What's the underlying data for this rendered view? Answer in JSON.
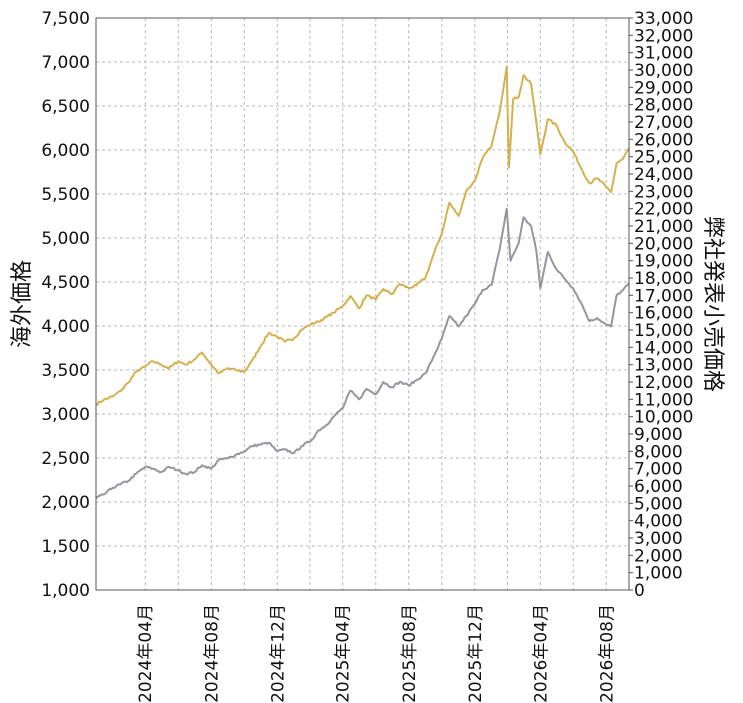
{
  "chart_data": {
    "type": "line",
    "ylabel_left": "海外価格",
    "ylabel_right": "弊社発表小売価格",
    "yleft_range": [
      1000,
      7500
    ],
    "yleft_ticks": [
      "1,000",
      "1,500",
      "2,000",
      "2,500",
      "3,000",
      "3,500",
      "4,000",
      "4,500",
      "5,000",
      "5,500",
      "6,000",
      "6,500",
      "7,000",
      "7,500"
    ],
    "yright_range": [
      0,
      33000
    ],
    "yright_ticks": [
      "0",
      "1,000",
      "2,000",
      "3,000",
      "4,000",
      "5,000",
      "6,000",
      "7,000",
      "8,000",
      "9,000",
      "10,000",
      "11,000",
      "12,000",
      "13,000",
      "14,000",
      "15,000",
      "16,000",
      "17,000",
      "18,000",
      "19,000",
      "20,000",
      "21,000",
      "22,000",
      "23,000",
      "24,000",
      "25,000",
      "26,000",
      "27,000",
      "28,000",
      "29,000",
      "30,000",
      "31,000",
      "32,000",
      "33,000"
    ],
    "x_range": [
      "2024-01-01",
      "2026-09-12"
    ],
    "x_ticks": [
      {
        "date": "2024-04-01",
        "label": "2024年04月"
      },
      {
        "date": "2024-08-01",
        "label": "2024年08月"
      },
      {
        "date": "2024-12-01",
        "label": "2024年12月"
      },
      {
        "date": "2025-04-01",
        "label": "2025年04月"
      },
      {
        "date": "2025-08-01",
        "label": "2025年08月"
      },
      {
        "date": "2025-12-01",
        "label": "2025年12月"
      },
      {
        "date": "2026-04-01",
        "label": "2026年04月"
      },
      {
        "date": "2026-08-01",
        "label": "2026年08月"
      }
    ],
    "grid": true,
    "series": [
      {
        "axis": "left",
        "color": "#d4b14e",
        "points": [
          [
            "2024-01-01",
            3110
          ],
          [
            "2024-01-15",
            3160
          ],
          [
            "2024-02-01",
            3200
          ],
          [
            "2024-02-15",
            3260
          ],
          [
            "2024-03-01",
            3360
          ],
          [
            "2024-03-15",
            3480
          ],
          [
            "2024-04-01",
            3540
          ],
          [
            "2024-04-15",
            3600
          ],
          [
            "2024-05-01",
            3560
          ],
          [
            "2024-05-15",
            3520
          ],
          [
            "2024-06-01",
            3600
          ],
          [
            "2024-06-15",
            3560
          ],
          [
            "2024-07-01",
            3620
          ],
          [
            "2024-07-15",
            3700
          ],
          [
            "2024-08-01",
            3560
          ],
          [
            "2024-08-15",
            3460
          ],
          [
            "2024-09-01",
            3520
          ],
          [
            "2024-09-15",
            3500
          ],
          [
            "2024-10-01",
            3480
          ],
          [
            "2024-10-15",
            3600
          ],
          [
            "2024-11-01",
            3780
          ],
          [
            "2024-11-15",
            3920
          ],
          [
            "2024-12-01",
            3880
          ],
          [
            "2024-12-15",
            3820
          ],
          [
            "2025-01-01",
            3860
          ],
          [
            "2025-01-15",
            3960
          ],
          [
            "2025-02-01",
            4020
          ],
          [
            "2025-02-15",
            4050
          ],
          [
            "2025-03-01",
            4100
          ],
          [
            "2025-03-15",
            4150
          ],
          [
            "2025-04-01",
            4230
          ],
          [
            "2025-04-15",
            4340
          ],
          [
            "2025-05-01",
            4200
          ],
          [
            "2025-05-15",
            4350
          ],
          [
            "2025-06-01",
            4300
          ],
          [
            "2025-06-15",
            4420
          ],
          [
            "2025-07-01",
            4360
          ],
          [
            "2025-07-15",
            4480
          ],
          [
            "2025-08-01",
            4430
          ],
          [
            "2025-08-15",
            4460
          ],
          [
            "2025-09-01",
            4550
          ],
          [
            "2025-09-15",
            4800
          ],
          [
            "2025-10-01",
            5050
          ],
          [
            "2025-10-15",
            5400
          ],
          [
            "2025-11-01",
            5250
          ],
          [
            "2025-11-15",
            5530
          ],
          [
            "2025-12-01",
            5650
          ],
          [
            "2025-12-15",
            5900
          ],
          [
            "2026-01-01",
            6050
          ],
          [
            "2026-01-15",
            6400
          ],
          [
            "2026-01-29",
            6950
          ],
          [
            "2026-02-02",
            5800
          ],
          [
            "2026-02-10",
            6580
          ],
          [
            "2026-02-20",
            6600
          ],
          [
            "2026-03-01",
            6850
          ],
          [
            "2026-03-15",
            6750
          ],
          [
            "2026-03-25",
            6300
          ],
          [
            "2026-04-01",
            5950
          ],
          [
            "2026-04-15",
            6350
          ],
          [
            "2026-05-01",
            6280
          ],
          [
            "2026-05-15",
            6100
          ],
          [
            "2026-06-01",
            5980
          ],
          [
            "2026-06-15",
            5800
          ],
          [
            "2026-07-01",
            5620
          ],
          [
            "2026-07-15",
            5680
          ],
          [
            "2026-08-01",
            5580
          ],
          [
            "2026-08-10",
            5520
          ],
          [
            "2026-08-20",
            5850
          ],
          [
            "2026-09-01",
            5900
          ],
          [
            "2026-09-12",
            6020
          ]
        ]
      },
      {
        "axis": "right",
        "color": "#95959d",
        "points": [
          [
            "2024-01-01",
            5300
          ],
          [
            "2024-01-15",
            5500
          ],
          [
            "2024-02-01",
            5900
          ],
          [
            "2024-02-15",
            6100
          ],
          [
            "2024-03-01",
            6300
          ],
          [
            "2024-03-15",
            6700
          ],
          [
            "2024-04-01",
            7100
          ],
          [
            "2024-04-15",
            7000
          ],
          [
            "2024-05-01",
            6800
          ],
          [
            "2024-05-15",
            7100
          ],
          [
            "2024-06-01",
            6900
          ],
          [
            "2024-06-15",
            6700
          ],
          [
            "2024-07-01",
            6800
          ],
          [
            "2024-07-15",
            7200
          ],
          [
            "2024-08-01",
            7000
          ],
          [
            "2024-08-15",
            7500
          ],
          [
            "2024-09-01",
            7600
          ],
          [
            "2024-09-15",
            7800
          ],
          [
            "2024-10-01",
            8000
          ],
          [
            "2024-10-15",
            8300
          ],
          [
            "2024-11-01",
            8400
          ],
          [
            "2024-11-15",
            8500
          ],
          [
            "2024-12-01",
            8000
          ],
          [
            "2024-12-15",
            8100
          ],
          [
            "2025-01-01",
            7900
          ],
          [
            "2025-01-15",
            8300
          ],
          [
            "2025-02-01",
            8600
          ],
          [
            "2025-02-15",
            9200
          ],
          [
            "2025-03-01",
            9500
          ],
          [
            "2025-03-15",
            10000
          ],
          [
            "2025-04-01",
            10500
          ],
          [
            "2025-04-15",
            11500
          ],
          [
            "2025-05-01",
            11000
          ],
          [
            "2025-05-15",
            11600
          ],
          [
            "2025-06-01",
            11300
          ],
          [
            "2025-06-15",
            12000
          ],
          [
            "2025-07-01",
            11700
          ],
          [
            "2025-07-15",
            12000
          ],
          [
            "2025-08-01",
            11800
          ],
          [
            "2025-08-15",
            12100
          ],
          [
            "2025-09-01",
            12500
          ],
          [
            "2025-09-15",
            13400
          ],
          [
            "2025-10-01",
            14500
          ],
          [
            "2025-10-15",
            15800
          ],
          [
            "2025-11-01",
            15200
          ],
          [
            "2025-11-15",
            15800
          ],
          [
            "2025-12-01",
            16500
          ],
          [
            "2025-12-15",
            17300
          ],
          [
            "2026-01-01",
            17600
          ],
          [
            "2026-01-15",
            19500
          ],
          [
            "2026-01-29",
            22000
          ],
          [
            "2026-02-05",
            19000
          ],
          [
            "2026-02-20",
            20000
          ],
          [
            "2026-03-01",
            21500
          ],
          [
            "2026-03-15",
            21000
          ],
          [
            "2026-03-25",
            19500
          ],
          [
            "2026-04-01",
            17400
          ],
          [
            "2026-04-15",
            19500
          ],
          [
            "2026-05-01",
            18500
          ],
          [
            "2026-05-15",
            18000
          ],
          [
            "2026-06-01",
            17400
          ],
          [
            "2026-06-15",
            16600
          ],
          [
            "2026-07-01",
            15500
          ],
          [
            "2026-07-15",
            15700
          ],
          [
            "2026-08-01",
            15300
          ],
          [
            "2026-08-10",
            15200
          ],
          [
            "2026-08-20",
            17000
          ],
          [
            "2026-09-01",
            17300
          ],
          [
            "2026-09-12",
            17700
          ]
        ]
      }
    ]
  }
}
